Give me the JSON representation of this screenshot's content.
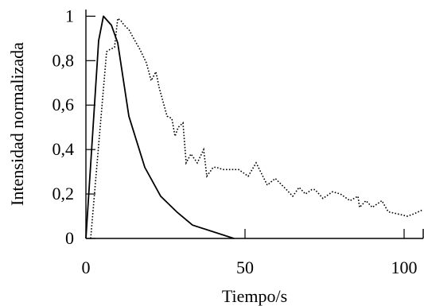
{
  "chart_data": {
    "type": "line",
    "title": "",
    "xlabel": "Tiempo/s",
    "ylabel": "Intensidad normalizada",
    "xlim": [
      0,
      106
    ],
    "ylim": [
      0,
      1.03
    ],
    "x_ticks": [
      {
        "value": 0,
        "label": "0"
      },
      {
        "value": 50,
        "label": "50"
      },
      {
        "value": 100,
        "label": "100"
      }
    ],
    "y_ticks": [
      {
        "value": 0,
        "label": "0"
      },
      {
        "value": 0.2,
        "label": "0,2"
      },
      {
        "value": 0.4,
        "label": "0,4"
      },
      {
        "value": 0.6,
        "label": "0,6"
      },
      {
        "value": 0.8,
        "label": "0,8"
      },
      {
        "value": 1.0,
        "label": "1"
      }
    ],
    "grid": false,
    "legend": "none",
    "series": [
      {
        "style": "solid",
        "color": "#000000",
        "points": [
          [
            0,
            0
          ],
          [
            4,
            0.89
          ],
          [
            5.5,
            1.0
          ],
          [
            8,
            0.96
          ],
          [
            10,
            0.88
          ],
          [
            13.5,
            0.55
          ],
          [
            18.5,
            0.32
          ],
          [
            23.5,
            0.19
          ],
          [
            28.5,
            0.12
          ],
          [
            33.5,
            0.06
          ],
          [
            46.5,
            0.0
          ]
        ]
      },
      {
        "style": "dotted",
        "color": "#000000",
        "points": [
          [
            1.5,
            0
          ],
          [
            6.5,
            0.84
          ],
          [
            7.5,
            0.85
          ],
          [
            9,
            0.86
          ],
          [
            10,
            0.99
          ],
          [
            11,
            0.98
          ],
          [
            12,
            0.96
          ],
          [
            13.5,
            0.94
          ],
          [
            15,
            0.9
          ],
          [
            17,
            0.85
          ],
          [
            19,
            0.79
          ],
          [
            20.5,
            0.71
          ],
          [
            22,
            0.75
          ],
          [
            23,
            0.68
          ],
          [
            25.5,
            0.55
          ],
          [
            27,
            0.54
          ],
          [
            28,
            0.46
          ],
          [
            29,
            0.5
          ],
          [
            30.5,
            0.52
          ],
          [
            31.5,
            0.34
          ],
          [
            33,
            0.38
          ],
          [
            35,
            0.34
          ],
          [
            37,
            0.4
          ],
          [
            38,
            0.28
          ],
          [
            40,
            0.32
          ],
          [
            41,
            0.32
          ],
          [
            43,
            0.31
          ],
          [
            48,
            0.31
          ],
          [
            51,
            0.28
          ],
          [
            53.5,
            0.34
          ],
          [
            57,
            0.24
          ],
          [
            59.5,
            0.27
          ],
          [
            63,
            0.22
          ],
          [
            65,
            0.19
          ],
          [
            67,
            0.23
          ],
          [
            69,
            0.2
          ],
          [
            71,
            0.22
          ],
          [
            72,
            0.22
          ],
          [
            74.5,
            0.18
          ],
          [
            77.5,
            0.21
          ],
          [
            80,
            0.2
          ],
          [
            83,
            0.17
          ],
          [
            85.5,
            0.19
          ],
          [
            86,
            0.14
          ],
          [
            88,
            0.17
          ],
          [
            90,
            0.14
          ],
          [
            93,
            0.17
          ],
          [
            95,
            0.12
          ],
          [
            98,
            0.11
          ],
          [
            101,
            0.1
          ],
          [
            103,
            0.11
          ],
          [
            106,
            0.13
          ]
        ]
      }
    ]
  }
}
